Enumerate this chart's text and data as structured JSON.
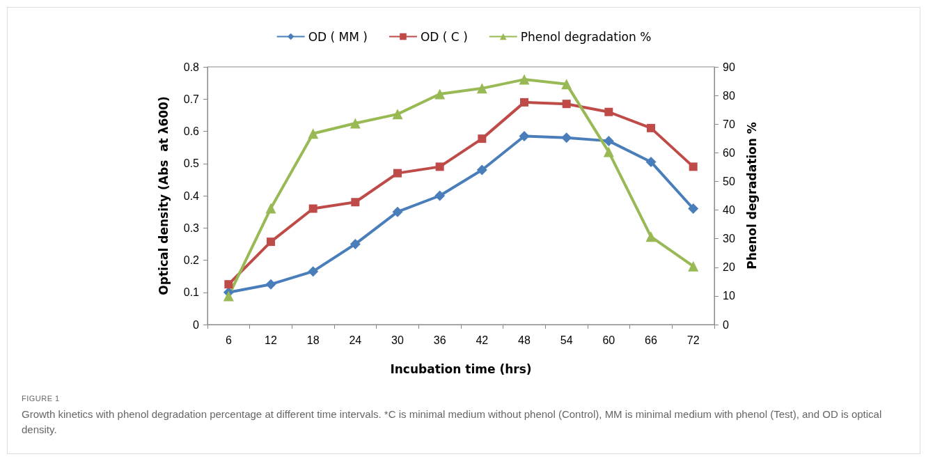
{
  "chart_data": {
    "type": "line",
    "xlabel": "Incubation time (hrs)",
    "ylabel": "Optical density (Abs  at λ600)",
    "y2label": "Phenol degradation %",
    "categories": [
      "6",
      "12",
      "18",
      "24",
      "30",
      "36",
      "42",
      "48",
      "54",
      "60",
      "66",
      "72"
    ],
    "ylim": [
      0,
      0.8
    ],
    "yticks": [
      0,
      0.1,
      0.2,
      0.3,
      0.4,
      0.5,
      0.6,
      0.7,
      0.8
    ],
    "y2lim": [
      0,
      90
    ],
    "y2ticks": [
      0,
      10,
      20,
      30,
      40,
      50,
      60,
      70,
      80,
      90
    ],
    "legend": "top",
    "grid": false,
    "series": [
      {
        "name": "OD ( MM )",
        "color": "#4a7ebb",
        "marker": "diamond",
        "values": [
          0.1,
          0.125,
          0.165,
          0.25,
          0.35,
          0.4,
          0.48,
          0.585,
          0.58,
          0.57,
          0.505,
          0.36
        ]
      },
      {
        "name": "OD ( C )",
        "color": "#be4b48",
        "marker": "square",
        "values": [
          0.125,
          0.257,
          0.36,
          0.38,
          0.47,
          0.49,
          0.577,
          0.69,
          0.685,
          0.66,
          0.61,
          0.49
        ]
      },
      {
        "name": "Phenol degradation %",
        "color": "#98b954",
        "marker": "triangle",
        "axis": "y2",
        "values": [
          10,
          40.6,
          66.7,
          70.3,
          73.5,
          80.5,
          82.5,
          85.6,
          84,
          60.3,
          30.7,
          20.4
        ]
      }
    ],
    "annotations": [
      "FIGURE 1",
      "Growth kinetics with phenol degradation percentage at different time intervals. *C is minimal medium without phenol (Control), MM is minimal medium with phenol (Test), and OD is optical density."
    ]
  }
}
